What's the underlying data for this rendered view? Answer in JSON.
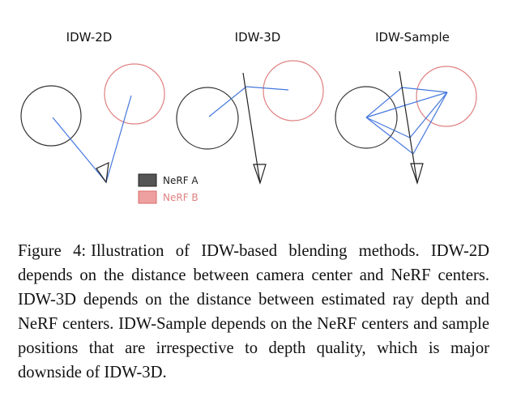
{
  "figure": {
    "panels": [
      {
        "title": "IDW-2D"
      },
      {
        "title": "IDW-3D"
      },
      {
        "title": "IDW-Sample"
      }
    ],
    "legend": [
      {
        "label": "NeRF A",
        "color": "#555555",
        "border": "#222222",
        "text_color": "#222222"
      },
      {
        "label": "NeRF B",
        "color": "#eea0a0",
        "border": "#d96b6b",
        "text_color": "#e0807f"
      }
    ],
    "colors": {
      "nerf_a_stroke": "#333333",
      "nerf_b_stroke": "#e08080",
      "ray": "#4477dd",
      "camera": "#222222"
    }
  },
  "caption": {
    "label": "Figure 4:",
    "text": "Illustration of IDW-based blending methods. IDW-2D depends on the distance between camera center and NeRF centers. IDW-3D depends on the distance between estimated ray depth and NeRF centers. IDW-Sample depends on the NeRF centers and sample positions that are irrespective to depth quality, which is major downside of IDW-3D."
  }
}
